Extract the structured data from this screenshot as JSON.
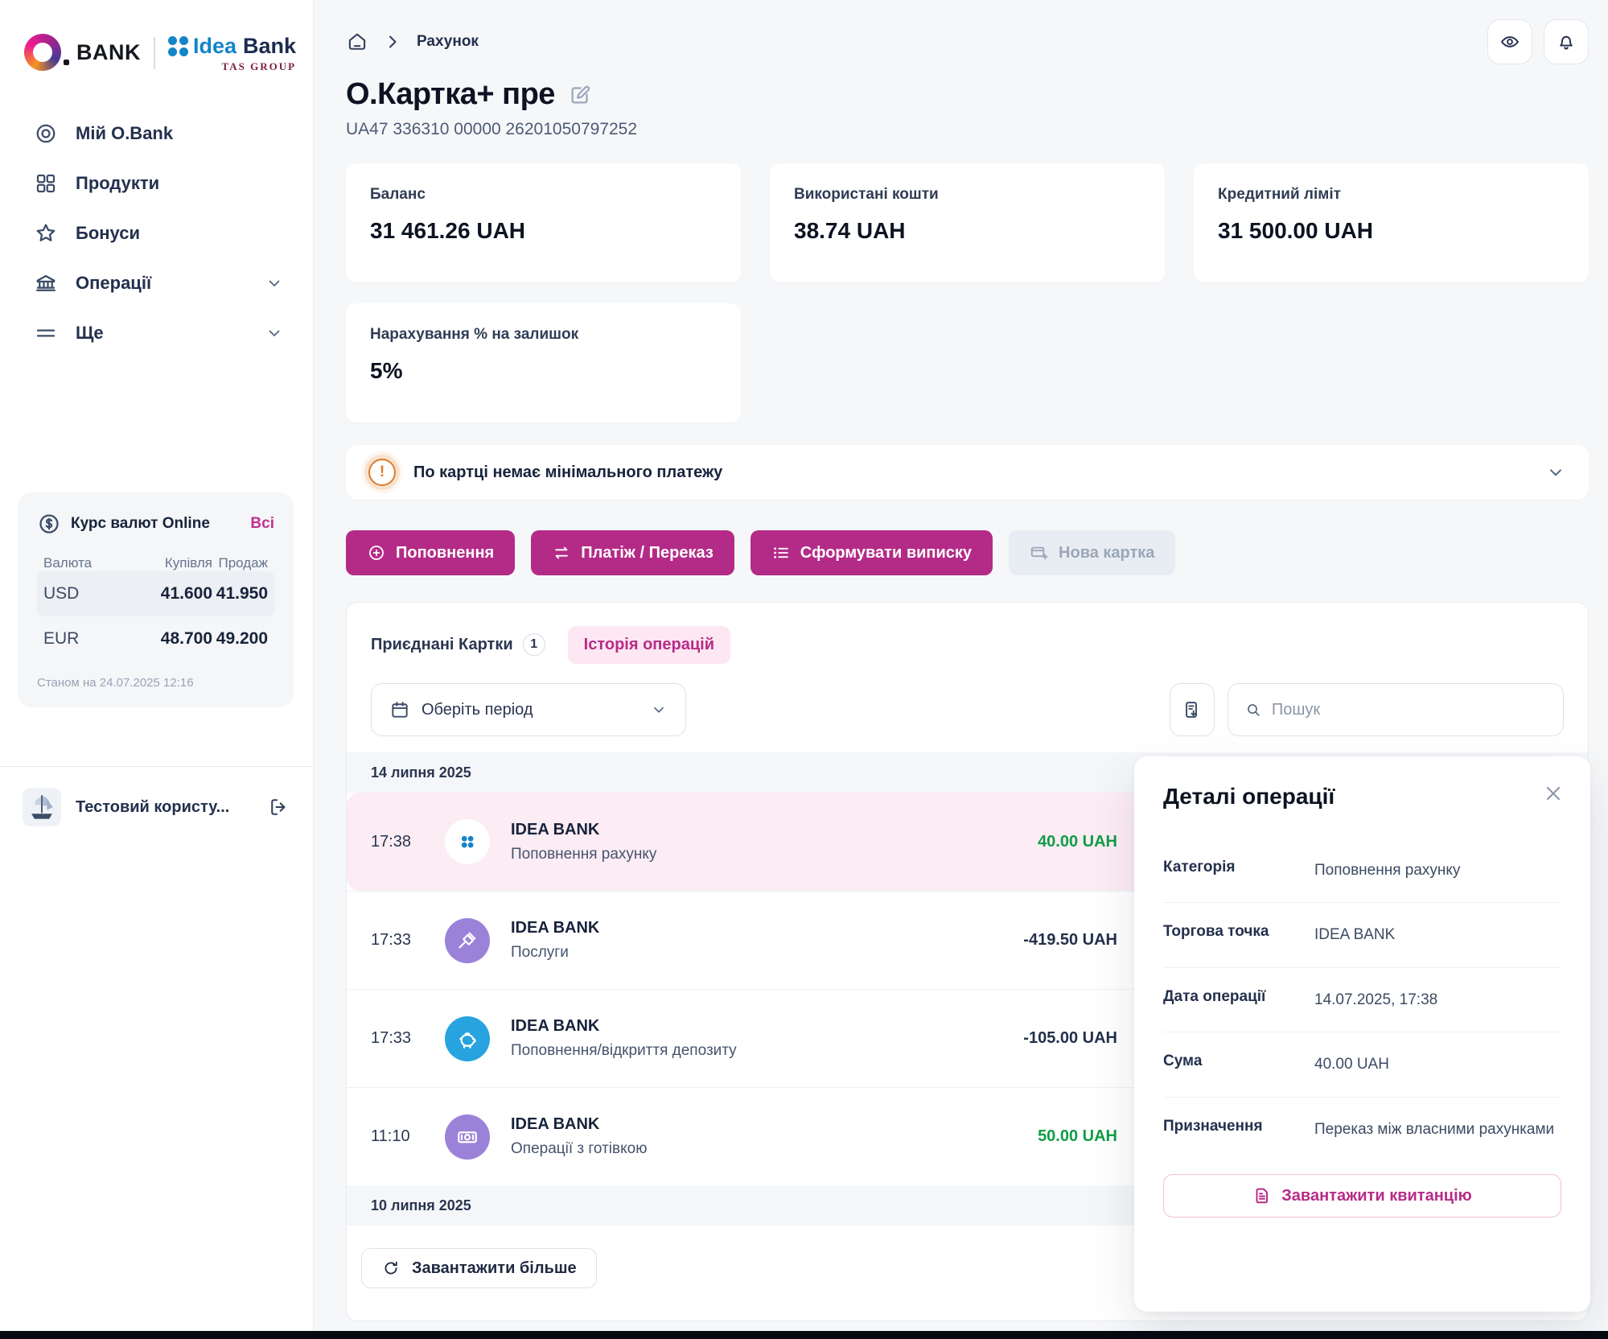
{
  "brand": {
    "obank_word": "BANK",
    "idea_word1": "Idea",
    "idea_word2": "Bank",
    "tas": "TAS GROUP"
  },
  "sidebar": {
    "nav": [
      {
        "label": "Мій O.Bank",
        "icon": "target-icon",
        "chevron": false
      },
      {
        "label": "Продукти",
        "icon": "grid-icon",
        "chevron": false
      },
      {
        "label": "Бонуси",
        "icon": "star-icon",
        "chevron": false
      },
      {
        "label": "Операції",
        "icon": "bank-icon",
        "chevron": true
      },
      {
        "label": "Ще",
        "icon": "menu-icon",
        "chevron": true
      }
    ],
    "currency": {
      "title": "Курс валют Online",
      "link": "Всі",
      "columns": [
        "Валюта",
        "Купівля",
        "Продаж"
      ],
      "rows": [
        {
          "code": "USD",
          "buy": "41.600",
          "sell": "41.950",
          "highlight": true
        },
        {
          "code": "EUR",
          "buy": "48.700",
          "sell": "49.200",
          "highlight": false
        }
      ],
      "footnote": "Станом на 24.07.2025 12:16"
    },
    "user": {
      "name": "Тестовий користу..."
    }
  },
  "topbar": {
    "breadcrumb": "Рахунок"
  },
  "header": {
    "title": "О.Картка+ пре",
    "account": "UA47 336310 00000 26201050797252"
  },
  "summary_cards": [
    {
      "label": "Баланс",
      "value": "31 461.26 UAH"
    },
    {
      "label": "Використані кошти",
      "value": "38.74 UAH"
    },
    {
      "label": "Кредитний ліміт",
      "value": "31 500.00 UAH"
    },
    {
      "label": "Нарахування % на залишок",
      "value": "5%"
    }
  ],
  "alert": {
    "text": "По картці немає мінімального платежу"
  },
  "actions": [
    {
      "label": "Поповнення",
      "icon": "plus-circle-icon",
      "enabled": true
    },
    {
      "label": "Платіж / Переказ",
      "icon": "transfer-icon",
      "enabled": true
    },
    {
      "label": "Сформувати виписку",
      "icon": "statement-icon",
      "enabled": true
    },
    {
      "label": "Нова картка",
      "icon": "new-card-icon",
      "enabled": false
    }
  ],
  "tabs": [
    {
      "label": "Приєднані Картки",
      "badge": "1",
      "active": false
    },
    {
      "label": "Історія операцій",
      "badge": "",
      "active": true
    }
  ],
  "filters": {
    "period_label": "Оберіть період",
    "search_placeholder": "Пошук"
  },
  "history": {
    "groups": [
      {
        "date": "14 липня 2025",
        "transactions": [
          {
            "time": "17:38",
            "merchant": "IDEA BANK",
            "category": "Поповнення рахунку",
            "amount": "40.00 UAH",
            "direction": "in",
            "icon": "ideabank-dots-icon",
            "avatar": "white",
            "selected": true
          },
          {
            "time": "17:33",
            "merchant": "IDEA BANK",
            "category": "Послуги",
            "amount": "-419.50 UAH",
            "direction": "out",
            "icon": "gavel-icon",
            "avatar": "purple",
            "selected": false
          },
          {
            "time": "17:33",
            "merchant": "IDEA BANK",
            "category": "Поповнення/відкриття депозиту",
            "amount": "-105.00 UAH",
            "direction": "out",
            "icon": "piggy-bank-icon",
            "avatar": "blue",
            "selected": false
          },
          {
            "time": "11:10",
            "merchant": "IDEA BANK",
            "category": "Операції з готівкою",
            "amount": "50.00 UAH",
            "direction": "in",
            "icon": "banknote-icon",
            "avatar": "purple",
            "selected": false
          }
        ]
      },
      {
        "date": "10 липня 2025",
        "transactions": []
      }
    ]
  },
  "load_more_label": "Завантажити більше",
  "details": {
    "title": "Деталі операції",
    "fields": [
      {
        "label": "Категорія",
        "value": "Поповнення рахунку"
      },
      {
        "label": "Торгова точка",
        "value": "IDEA BANK"
      },
      {
        "label": "Дата операції",
        "value": "14.07.2025, 17:38"
      },
      {
        "label": "Сума",
        "value": "40.00 UAH"
      },
      {
        "label": "Призначення",
        "value": "Переказ між власними рахунками"
      }
    ],
    "receipt_button": "Завантажити квитанцію"
  },
  "colors": {
    "accent": "#b42b87",
    "accent_light": "#fce7f2",
    "positive": "#0f9d46",
    "warning": "#dd7a28",
    "selected_row": "#fcecf4",
    "idea_blue": "#1385c8"
  }
}
